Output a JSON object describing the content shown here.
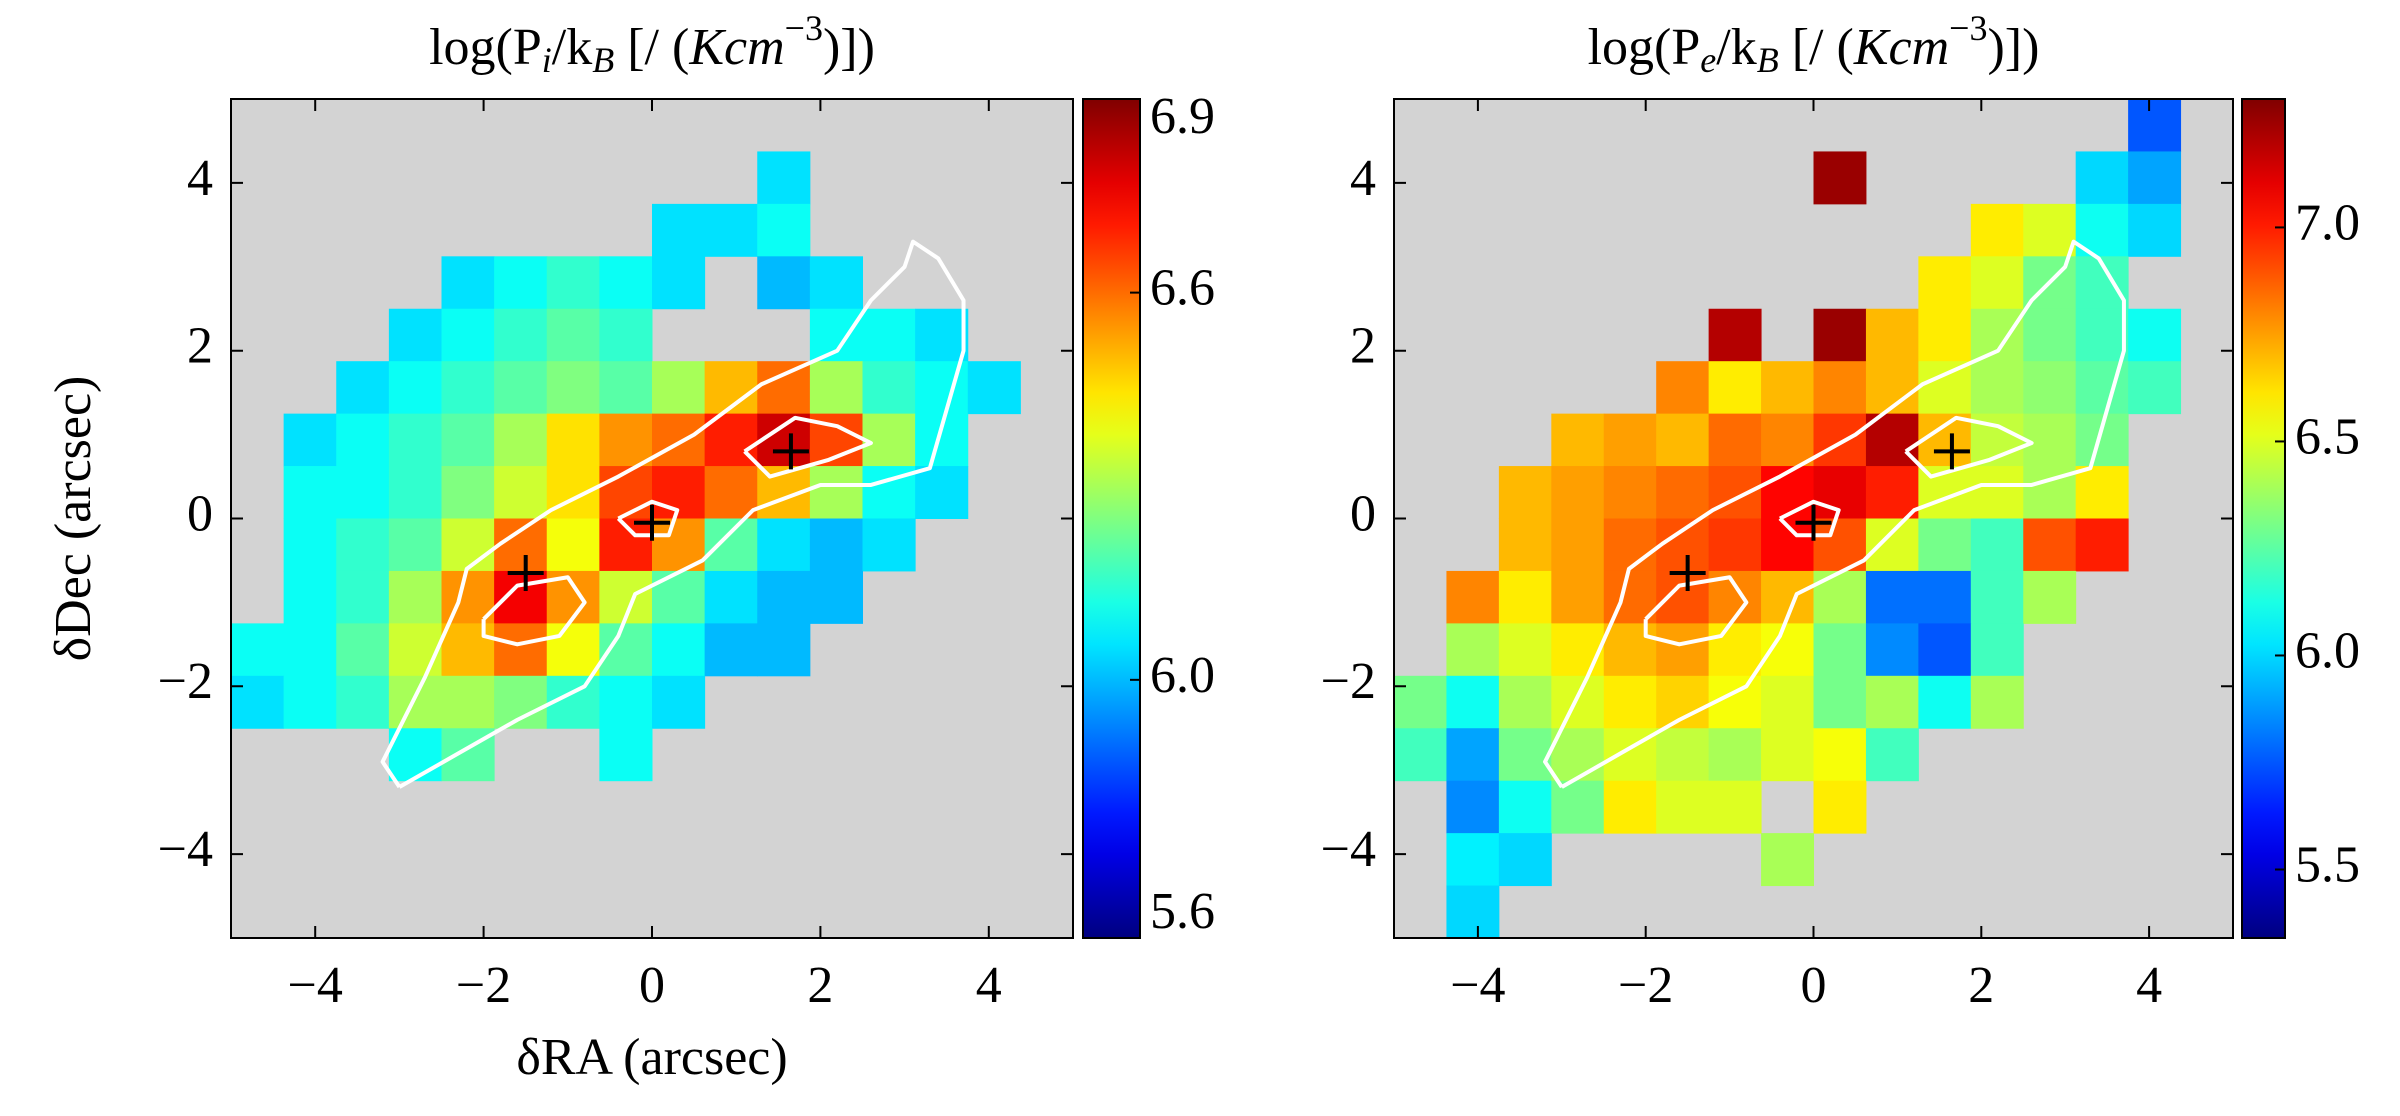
{
  "chart_data": [
    {
      "type": "heatmap",
      "title": [
        "log(P",
        "i",
        "/k",
        "B",
        " [/ (",
        "Kcm",
        "−3",
        ")])"
      ],
      "x_label": "δRA (arcsec)",
      "y_label": "δDec (arcsec)",
      "xlim": [
        -5,
        5
      ],
      "ylim": [
        -5,
        5
      ],
      "xticks": [
        {
          "value": -4,
          "label": "−4"
        },
        {
          "value": -2,
          "label": "−2"
        },
        0,
        2,
        4
      ],
      "yticks": [
        {
          "value": -4,
          "label": "−4"
        },
        {
          "value": -2,
          "label": "−2"
        },
        0,
        2,
        4
      ],
      "cmap": "jet",
      "background": "#d3d3d3",
      "clim": [
        5.6,
        6.9
      ],
      "cbar_ticks": [
        6.9,
        6.6,
        {
          "value": 6,
          "label": "6.0"
        },
        5.6
      ],
      "xbins": [
        -5,
        -4.375,
        -3.75,
        -3.125,
        -2.5,
        -1.875,
        -1.25,
        -0.625,
        0,
        0.625,
        1.25,
        1.875,
        2.5,
        3.125,
        3.75,
        4.375,
        5
      ],
      "ybins": [
        5,
        4.375,
        3.75,
        3.125,
        2.5,
        1.875,
        1.25,
        0.625,
        0,
        -0.625,
        -1.25,
        -1.875,
        -2.5,
        -3.125,
        -3.75,
        -4.375,
        -5
      ],
      "z": [
        [
          null,
          null,
          null,
          null,
          null,
          null,
          null,
          null,
          null,
          null,
          null,
          null,
          null,
          null,
          null,
          null
        ],
        [
          null,
          null,
          null,
          null,
          null,
          null,
          null,
          null,
          null,
          null,
          6.05,
          null,
          null,
          null,
          null,
          null
        ],
        [
          null,
          null,
          null,
          null,
          null,
          null,
          null,
          null,
          6.05,
          6.05,
          6.1,
          null,
          null,
          null,
          null,
          null
        ],
        [
          null,
          null,
          null,
          null,
          6.05,
          6.1,
          6.15,
          6.1,
          6.05,
          null,
          6.0,
          6.05,
          null,
          null,
          null,
          null
        ],
        [
          null,
          null,
          null,
          6.05,
          6.1,
          6.15,
          6.2,
          6.15,
          null,
          null,
          null,
          6.1,
          6.1,
          6.05,
          null,
          null
        ],
        [
          null,
          null,
          6.05,
          6.1,
          6.15,
          6.2,
          6.25,
          6.2,
          6.3,
          6.5,
          6.6,
          6.3,
          6.15,
          6.1,
          6.05,
          null
        ],
        [
          null,
          6.05,
          6.1,
          6.15,
          6.2,
          6.3,
          6.45,
          6.55,
          6.6,
          6.7,
          6.8,
          6.65,
          6.3,
          6.1,
          null,
          null
        ],
        [
          null,
          6.1,
          6.1,
          6.15,
          6.25,
          6.35,
          6.45,
          6.65,
          6.7,
          6.6,
          6.5,
          6.3,
          6.1,
          6.05,
          null,
          null
        ],
        [
          null,
          6.1,
          6.15,
          6.2,
          6.35,
          6.6,
          6.4,
          6.7,
          6.55,
          6.2,
          6.05,
          6.0,
          6.05,
          null,
          null,
          null
        ],
        [
          null,
          6.1,
          6.15,
          6.3,
          6.55,
          6.75,
          6.55,
          6.35,
          6.2,
          6.05,
          6.0,
          6.0,
          null,
          null,
          null,
          null
        ],
        [
          6.1,
          6.1,
          6.2,
          6.35,
          6.5,
          6.6,
          6.4,
          6.2,
          6.1,
          6.0,
          6.0,
          null,
          null,
          null,
          null,
          null
        ],
        [
          6.05,
          6.1,
          6.15,
          6.3,
          6.3,
          6.25,
          6.15,
          6.1,
          6.05,
          null,
          null,
          null,
          null,
          null,
          null,
          null
        ],
        [
          null,
          null,
          null,
          6.1,
          6.2,
          null,
          null,
          6.1,
          null,
          null,
          null,
          null,
          null,
          null,
          null,
          null
        ],
        [
          null,
          null,
          null,
          null,
          null,
          null,
          null,
          null,
          null,
          null,
          null,
          null,
          null,
          null,
          null,
          null
        ],
        [
          null,
          null,
          null,
          null,
          null,
          null,
          null,
          null,
          null,
          null,
          null,
          null,
          null,
          null,
          null,
          null
        ],
        [
          null,
          null,
          null,
          null,
          null,
          null,
          null,
          null,
          null,
          null,
          null,
          null,
          null,
          null,
          null,
          null
        ]
      ],
      "contours": [
        {
          "x": [
            -3,
            -3.2,
            -2.7,
            -2.3,
            -2.2,
            -1.8,
            -1.2,
            -0.4,
            0.5,
            1.3,
            2.2,
            2.6,
            3.0,
            3.1,
            3.4,
            3.7,
            3.7,
            3.5,
            3.3,
            2.6,
            2.0,
            1.2,
            0.6,
            -0.2,
            -0.4,
            -0.8,
            -1.6,
            -2.3,
            -3
          ],
          "y": [
            -3.2,
            -2.9,
            -1.9,
            -1.0,
            -0.6,
            -0.3,
            0.1,
            0.5,
            1.0,
            1.6,
            2.0,
            2.6,
            3.0,
            3.3,
            3.1,
            2.6,
            2.0,
            1.3,
            0.6,
            0.4,
            0.4,
            0.1,
            -0.5,
            -0.9,
            -1.4,
            -2.0,
            -2.4,
            -2.8,
            -3.2
          ]
        },
        {
          "x": [
            -2,
            -1.6,
            -1.0,
            -0.8,
            -1.1,
            -1.6,
            -2,
            -2
          ],
          "y": [
            -1.2,
            -0.8,
            -0.7,
            -1.0,
            -1.4,
            -1.5,
            -1.4,
            -1.2
          ]
        },
        {
          "x": [
            -0.4,
            0,
            0.3,
            0.2,
            -0.2,
            -0.4
          ],
          "y": [
            0,
            0.2,
            0.1,
            -0.2,
            -0.2,
            0
          ]
        },
        {
          "x": [
            1.1,
            1.7,
            2.2,
            2.6,
            2.1,
            1.4,
            1.1
          ],
          "y": [
            0.8,
            1.2,
            1.1,
            0.9,
            0.7,
            0.5,
            0.8
          ]
        }
      ],
      "markers": {
        "x": [
          -1.5,
          0,
          1.65
        ],
        "y": [
          -0.65,
          -0.05,
          0.8
        ]
      }
    },
    {
      "type": "heatmap",
      "title": [
        "log(P",
        "e",
        "/k",
        "B",
        " [/ (",
        "Kcm",
        "−3",
        ")])"
      ],
      "xlim": [
        -5,
        5
      ],
      "ylim": [
        -5,
        5
      ],
      "xticks": [
        {
          "value": -4,
          "label": "−4"
        },
        {
          "value": -2,
          "label": "−2"
        },
        0,
        2,
        4
      ],
      "yticks": [
        {
          "value": -4,
          "label": "−4"
        },
        {
          "value": -2,
          "label": "−2"
        },
        0,
        2,
        4
      ],
      "cmap": "jet",
      "background": "#d3d3d3",
      "clim": [
        5.34,
        7.3
      ],
      "cbar_ticks": [
        {
          "value": 7,
          "label": "7.0"
        },
        6.5,
        {
          "value": 6,
          "label": "6.0"
        },
        5.5
      ],
      "xbins": [
        -5,
        -4.375,
        -3.75,
        -3.125,
        -2.5,
        -1.875,
        -1.25,
        -0.625,
        0,
        0.625,
        1.25,
        1.875,
        2.5,
        3.125,
        3.75,
        4.375,
        5
      ],
      "ybins": [
        5,
        4.375,
        3.75,
        3.125,
        2.5,
        1.875,
        1.25,
        0.625,
        0,
        -0.625,
        -1.25,
        -1.875,
        -2.5,
        -3.125,
        -3.75,
        -4.375,
        -5
      ],
      "z": [
        [
          null,
          null,
          null,
          null,
          null,
          null,
          null,
          null,
          null,
          null,
          null,
          null,
          null,
          null,
          5.75,
          null
        ],
        [
          null,
          null,
          null,
          null,
          null,
          null,
          null,
          null,
          7.25,
          null,
          null,
          null,
          null,
          6.0,
          5.9,
          null
        ],
        [
          null,
          null,
          null,
          null,
          null,
          null,
          null,
          null,
          null,
          null,
          null,
          6.6,
          6.5,
          6.1,
          6.0,
          null
        ],
        [
          null,
          null,
          null,
          null,
          null,
          null,
          null,
          null,
          null,
          null,
          6.6,
          6.5,
          6.3,
          6.2,
          null,
          null
        ],
        [
          null,
          null,
          null,
          null,
          null,
          null,
          7.2,
          null,
          7.25,
          6.7,
          6.6,
          6.4,
          6.3,
          6.2,
          6.1,
          null
        ],
        [
          null,
          null,
          null,
          null,
          null,
          6.8,
          6.6,
          6.7,
          6.8,
          6.7,
          6.5,
          6.4,
          6.35,
          6.25,
          6.2,
          null
        ],
        [
          null,
          null,
          null,
          6.7,
          6.75,
          6.7,
          6.85,
          6.8,
          6.95,
          7.2,
          6.7,
          6.45,
          6.4,
          6.3,
          null,
          null
        ],
        [
          null,
          null,
          6.7,
          6.75,
          6.8,
          6.85,
          6.9,
          7.05,
          7.1,
          7.0,
          6.5,
          6.5,
          6.4,
          6.6,
          null,
          null
        ],
        [
          null,
          null,
          6.7,
          6.75,
          6.85,
          6.9,
          6.95,
          7.05,
          6.9,
          6.5,
          6.3,
          6.2,
          6.9,
          7.0,
          null,
          null
        ],
        [
          null,
          6.8,
          6.6,
          6.75,
          6.85,
          6.9,
          6.8,
          6.7,
          6.4,
          5.8,
          5.8,
          6.2,
          6.4,
          null,
          null,
          null
        ],
        [
          null,
          6.4,
          6.5,
          6.6,
          6.7,
          6.75,
          6.6,
          6.55,
          6.3,
          5.85,
          5.75,
          6.2,
          null,
          null,
          null,
          null
        ],
        [
          6.3,
          6.1,
          6.4,
          6.5,
          6.6,
          6.65,
          6.55,
          6.5,
          6.3,
          6.4,
          6.1,
          6.4,
          null,
          null,
          null,
          null
        ],
        [
          6.2,
          5.9,
          6.3,
          6.4,
          6.5,
          6.45,
          6.4,
          6.5,
          6.55,
          6.2,
          null,
          null,
          null,
          null,
          null,
          null
        ],
        [
          null,
          5.85,
          6.1,
          6.3,
          6.6,
          6.5,
          6.5,
          null,
          6.6,
          null,
          null,
          null,
          null,
          null,
          null,
          null
        ],
        [
          null,
          6.05,
          6.0,
          null,
          null,
          null,
          null,
          6.4,
          null,
          null,
          null,
          null,
          null,
          null,
          null,
          null
        ],
        [
          null,
          6.0,
          null,
          null,
          null,
          null,
          null,
          null,
          null,
          null,
          null,
          null,
          null,
          null,
          null,
          null
        ]
      ],
      "contours": [
        {
          "x": [
            -3,
            -3.2,
            -2.7,
            -2.3,
            -2.2,
            -1.8,
            -1.2,
            -0.4,
            0.5,
            1.3,
            2.2,
            2.6,
            3.0,
            3.1,
            3.4,
            3.7,
            3.7,
            3.5,
            3.3,
            2.6,
            2.0,
            1.2,
            0.6,
            -0.2,
            -0.4,
            -0.8,
            -1.6,
            -2.3,
            -3
          ],
          "y": [
            -3.2,
            -2.9,
            -1.9,
            -1.0,
            -0.6,
            -0.3,
            0.1,
            0.5,
            1.0,
            1.6,
            2.0,
            2.6,
            3.0,
            3.3,
            3.1,
            2.6,
            2.0,
            1.3,
            0.6,
            0.4,
            0.4,
            0.1,
            -0.5,
            -0.9,
            -1.4,
            -2.0,
            -2.4,
            -2.8,
            -3.2
          ]
        },
        {
          "x": [
            -2,
            -1.6,
            -1.0,
            -0.8,
            -1.1,
            -1.6,
            -2,
            -2
          ],
          "y": [
            -1.2,
            -0.8,
            -0.7,
            -1.0,
            -1.4,
            -1.5,
            -1.4,
            -1.2
          ]
        },
        {
          "x": [
            -0.4,
            0,
            0.3,
            0.2,
            -0.2,
            -0.4
          ],
          "y": [
            0,
            0.2,
            0.1,
            -0.2,
            -0.2,
            0
          ]
        },
        {
          "x": [
            1.1,
            1.7,
            2.2,
            2.6,
            2.1,
            1.4,
            1.1
          ],
          "y": [
            0.8,
            1.2,
            1.1,
            0.9,
            0.7,
            0.5,
            0.8
          ]
        }
      ],
      "markers": {
        "x": [
          -1.5,
          0,
          1.65
        ],
        "y": [
          -0.65,
          -0.05,
          0.8
        ]
      }
    }
  ]
}
